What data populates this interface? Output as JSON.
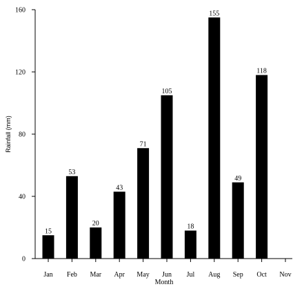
{
  "chart_data": {
    "type": "bar",
    "categories": [
      "Jan",
      "Feb",
      "Mar",
      "Apr",
      "May",
      "Jun",
      "Jul",
      "Aug",
      "Sep",
      "Oct",
      "Nov"
    ],
    "values": [
      15,
      53,
      20,
      43,
      71,
      105,
      18,
      155,
      49,
      118,
      null
    ],
    "value_labels": [
      "15",
      "53",
      "20",
      "43",
      "71",
      "105",
      "18",
      "155",
      "49",
      "118",
      ""
    ],
    "title": "",
    "xlabel": "Month",
    "ylabel": "Rainfall (mm)",
    "ylim": [
      0,
      160
    ],
    "yticks": [
      0,
      40,
      80,
      120,
      160
    ],
    "grid": false,
    "bar_color": "#000000"
  }
}
